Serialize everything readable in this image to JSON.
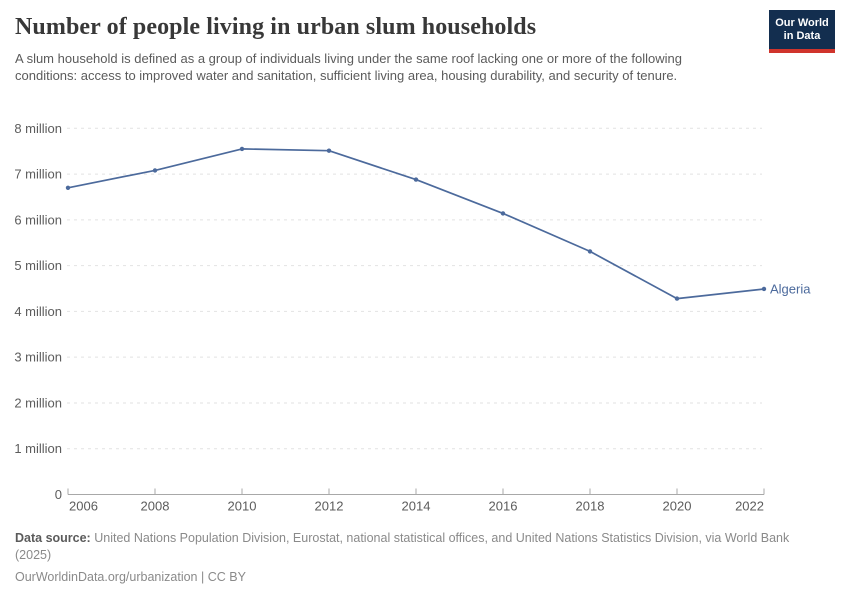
{
  "header": {
    "title": "Number of people living in urban slum households",
    "subtitle": "A slum household is defined as a group of individuals living under the same roof lacking one or more of the following conditions: access to improved water and sanitation, sufficient living area, housing durability, and security of tenure.",
    "logo_line1": "Our World",
    "logo_line2": "in Data"
  },
  "chart_data": {
    "type": "line",
    "title": "Number of people living in urban slum households",
    "x": [
      2006,
      2008,
      2010,
      2012,
      2014,
      2016,
      2018,
      2020,
      2022
    ],
    "xlim": [
      2006,
      2022
    ],
    "ylim_millions": [
      0,
      8
    ],
    "grid": "horizontal-dashed",
    "legend_position": "end-of-line-label",
    "yticks": [
      {
        "value": 0,
        "label": "0"
      },
      {
        "value": 1,
        "label": "1 million"
      },
      {
        "value": 2,
        "label": "2 million"
      },
      {
        "value": 3,
        "label": "3 million"
      },
      {
        "value": 4,
        "label": "4 million"
      },
      {
        "value": 5,
        "label": "5 million"
      },
      {
        "value": 6,
        "label": "6 million"
      },
      {
        "value": 7,
        "label": "7 million"
      },
      {
        "value": 8,
        "label": "8 million"
      }
    ],
    "series": [
      {
        "name": "Algeria",
        "color": "#4C6A9C",
        "values_millions": [
          6.7,
          7.08,
          7.55,
          7.51,
          6.88,
          6.14,
          5.31,
          4.28,
          4.49
        ]
      }
    ]
  },
  "footer": {
    "source_label": "Data source:",
    "source_text": "United Nations Population Division, Eurostat, national statistical offices, and United Nations Statistics Division, via World Bank (2025)",
    "link": "OurWorldinData.org/urbanization",
    "separator": " | ",
    "license": "CC BY"
  },
  "colors": {
    "line": "#4C6A9C",
    "series_label": "#4C6A9C",
    "logo_background": "#132e4f",
    "logo_bar": "#d0342c",
    "gridline": "#e2e2e2",
    "axis": "#a8a8a8",
    "tick_text": "#5c5c5c"
  }
}
